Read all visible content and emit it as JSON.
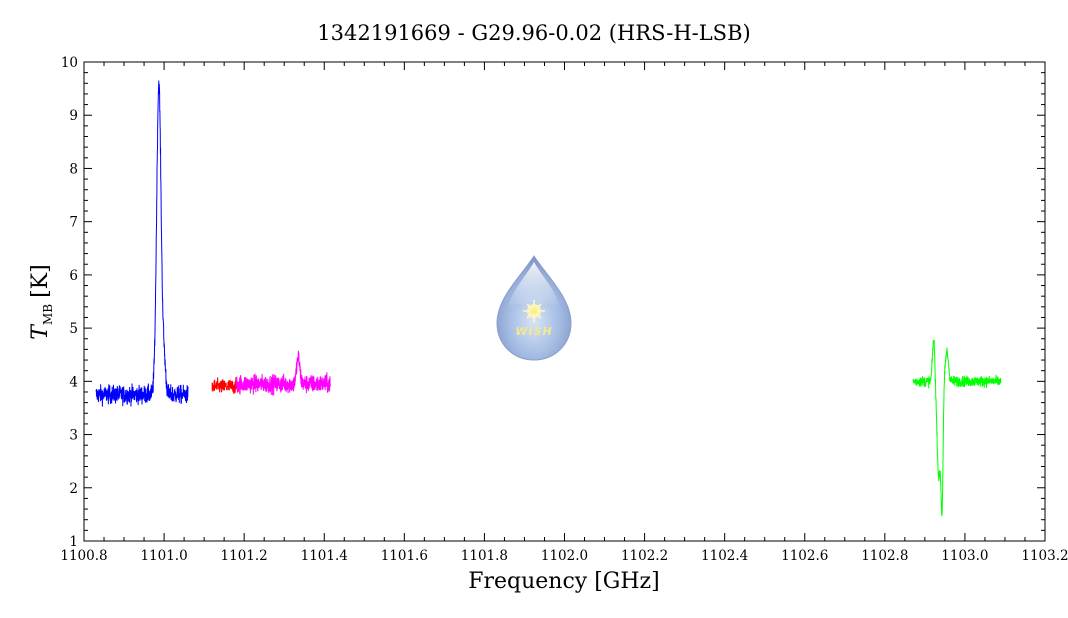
{
  "chart_data": {
    "type": "line",
    "title": "1342191669 - G29.96-0.02 (HRS-H-LSB)",
    "xlabel": "Frequency [GHz]",
    "ylabel_symbol": "T",
    "ylabel_subscript": "MB",
    "ylabel_unit": "[K]",
    "xlim": [
      1100.8,
      1103.2
    ],
    "ylim": [
      1,
      10
    ],
    "x_ticks": [
      "1100.8",
      "1101.0",
      "1101.2",
      "1101.4",
      "1101.6",
      "1101.8",
      "1102.0",
      "1102.2",
      "1102.4",
      "1102.6",
      "1102.8",
      "1103.0",
      "1103.2"
    ],
    "y_ticks": [
      "1",
      "2",
      "3",
      "4",
      "5",
      "6",
      "7",
      "8",
      "9",
      "10"
    ],
    "grid": false,
    "series": [
      {
        "color": "#0000ff",
        "x_range": [
          1100.83,
          1101.06
        ],
        "baseline": 3.75,
        "noise": 0.17,
        "features": [
          {
            "x": 1100.987,
            "peak": 9.6,
            "width": 0.0055
          },
          {
            "x": 1101.0,
            "peak": 4.35,
            "width": 0.004
          }
        ]
      },
      {
        "color": "#ff0000",
        "x_range": [
          1101.12,
          1101.19
        ],
        "baseline": 3.9,
        "noise": 0.14,
        "features": []
      },
      {
        "color": "#ff00ff",
        "x_range": [
          1101.18,
          1101.415
        ],
        "baseline": 3.95,
        "noise": 0.17,
        "features": [
          {
            "x": 1101.335,
            "peak": 4.45,
            "width": 0.004
          }
        ]
      },
      {
        "color": "#00ff00",
        "x_range": [
          1102.87,
          1103.09
        ],
        "baseline": 4.0,
        "noise": 0.1,
        "features": [
          {
            "x": 1102.922,
            "peak": 4.8,
            "width": 0.003
          },
          {
            "x": 1102.935,
            "peak": 2.2,
            "width": 0.0045
          },
          {
            "x": 1102.943,
            "peak": 1.9,
            "width": 0.0025
          },
          {
            "x": 1102.955,
            "peak": 4.55,
            "width": 0.004
          }
        ]
      }
    ],
    "logo": {
      "name": "drop-logo-icon",
      "text": "WISH"
    }
  }
}
